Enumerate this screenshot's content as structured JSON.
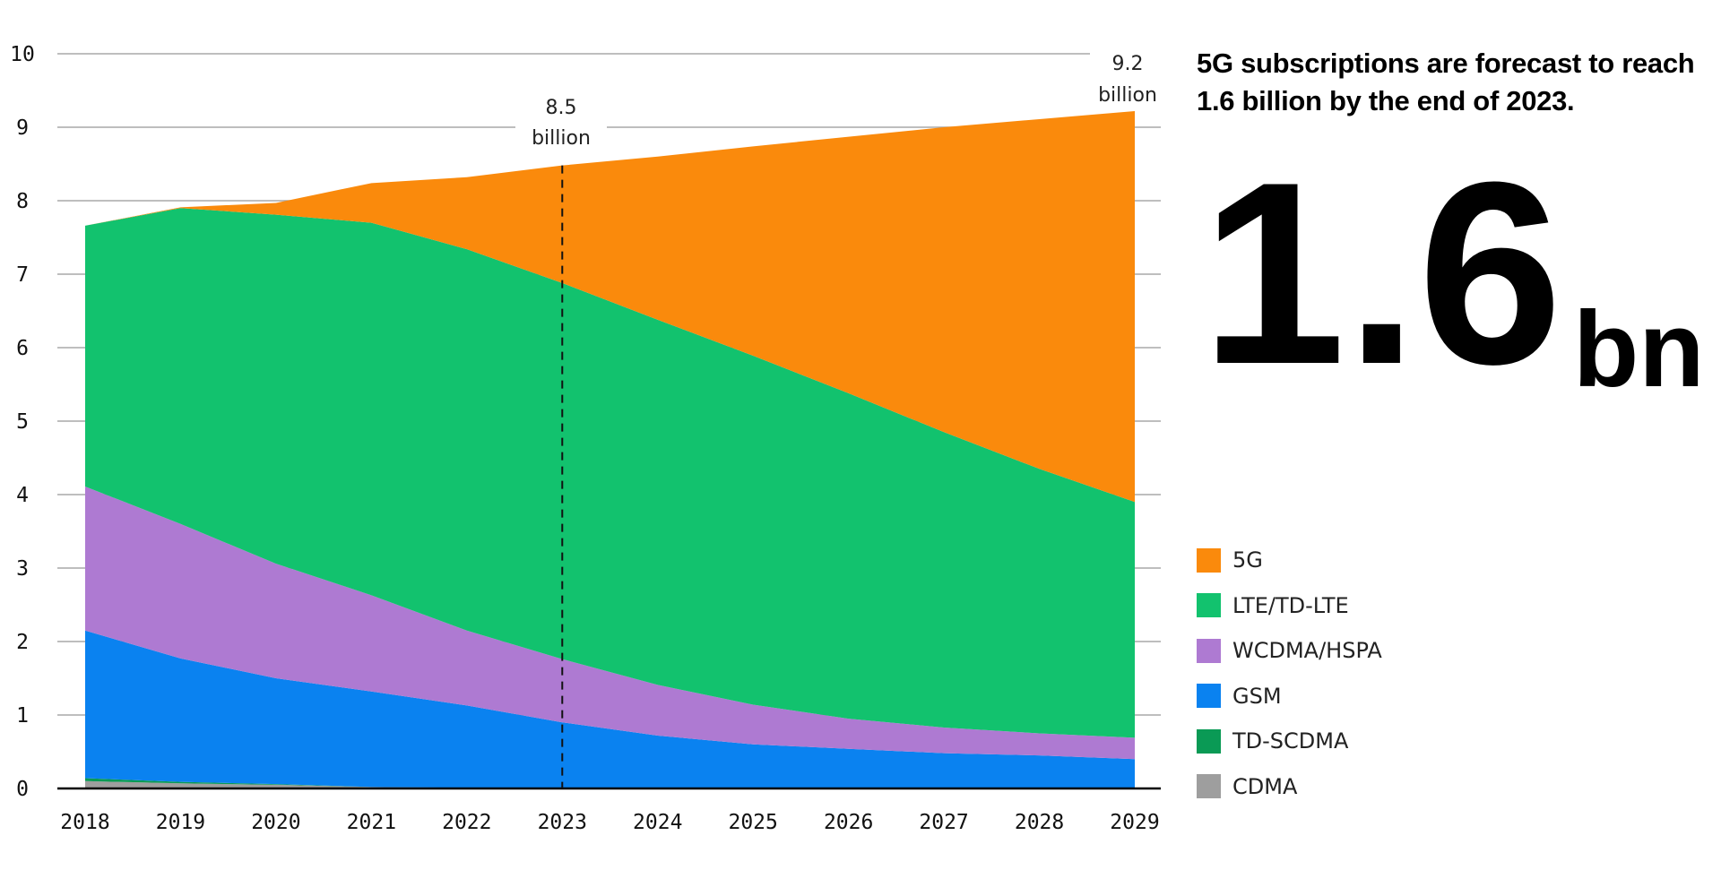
{
  "headline": "5G subscriptions are forecast to reach 1.6 billion by the end of 2023.",
  "big_number": {
    "value": "1.6",
    "unit": "bn"
  },
  "chart_data": {
    "type": "area",
    "stacked": true,
    "x": [
      "2018",
      "2019",
      "2020",
      "2021",
      "2022",
      "2023",
      "2024",
      "2025",
      "2026",
      "2027",
      "2028",
      "2029"
    ],
    "ylim": [
      0,
      10
    ],
    "yticks": [
      "0",
      "1",
      "2",
      "3",
      "4",
      "5",
      "6",
      "7",
      "8",
      "9",
      "10"
    ],
    "grid": true,
    "legend_position": "right",
    "series": [
      {
        "name": "CDMA",
        "color": "#9e9e9e",
        "values": [
          0.1,
          0.07,
          0.05,
          0.02,
          0.01,
          0.01,
          0,
          0,
          0,
          0,
          0,
          0
        ]
      },
      {
        "name": "TD-SCDMA",
        "color": "#0a9a55",
        "values": [
          0.04,
          0.02,
          0.01,
          0,
          0,
          0,
          0,
          0,
          0,
          0,
          0,
          0
        ]
      },
      {
        "name": "GSM",
        "color": "#0a82f0",
        "values": [
          2.01,
          1.68,
          1.44,
          1.3,
          1.12,
          0.89,
          0.72,
          0.6,
          0.54,
          0.48,
          0.45,
          0.4
        ]
      },
      {
        "name": "WCDMA/HSPA",
        "color": "#ae7ad2",
        "values": [
          1.96,
          1.83,
          1.56,
          1.31,
          1.02,
          0.86,
          0.69,
          0.54,
          0.41,
          0.35,
          0.3,
          0.29
        ]
      },
      {
        "name": "LTE/TD-LTE",
        "color": "#12c26e",
        "values": [
          3.55,
          4.3,
          4.75,
          5.07,
          5.19,
          5.12,
          4.97,
          4.75,
          4.43,
          4.02,
          3.6,
          3.21
        ]
      },
      {
        "name": "5G",
        "color": "#fa8a0c",
        "values": [
          0,
          0.01,
          0.16,
          0.54,
          0.98,
          1.6,
          2.22,
          2.85,
          3.49,
          4.15,
          4.76,
          5.32
        ]
      }
    ],
    "annotations": [
      {
        "x": "2023",
        "line1": "8.5",
        "line2": "billion",
        "dashed_line": true
      },
      {
        "x": "2029",
        "line1": "9.2",
        "line2": "billion"
      }
    ]
  },
  "legend": [
    {
      "label": "5G",
      "color": "#fa8a0c"
    },
    {
      "label": "LTE/TD-LTE",
      "color": "#12c26e"
    },
    {
      "label": "WCDMA/HSPA",
      "color": "#ae7ad2"
    },
    {
      "label": "GSM",
      "color": "#0a82f0"
    },
    {
      "label": "TD-SCDMA",
      "color": "#0a9a55"
    },
    {
      "label": "CDMA",
      "color": "#9e9e9e"
    }
  ]
}
